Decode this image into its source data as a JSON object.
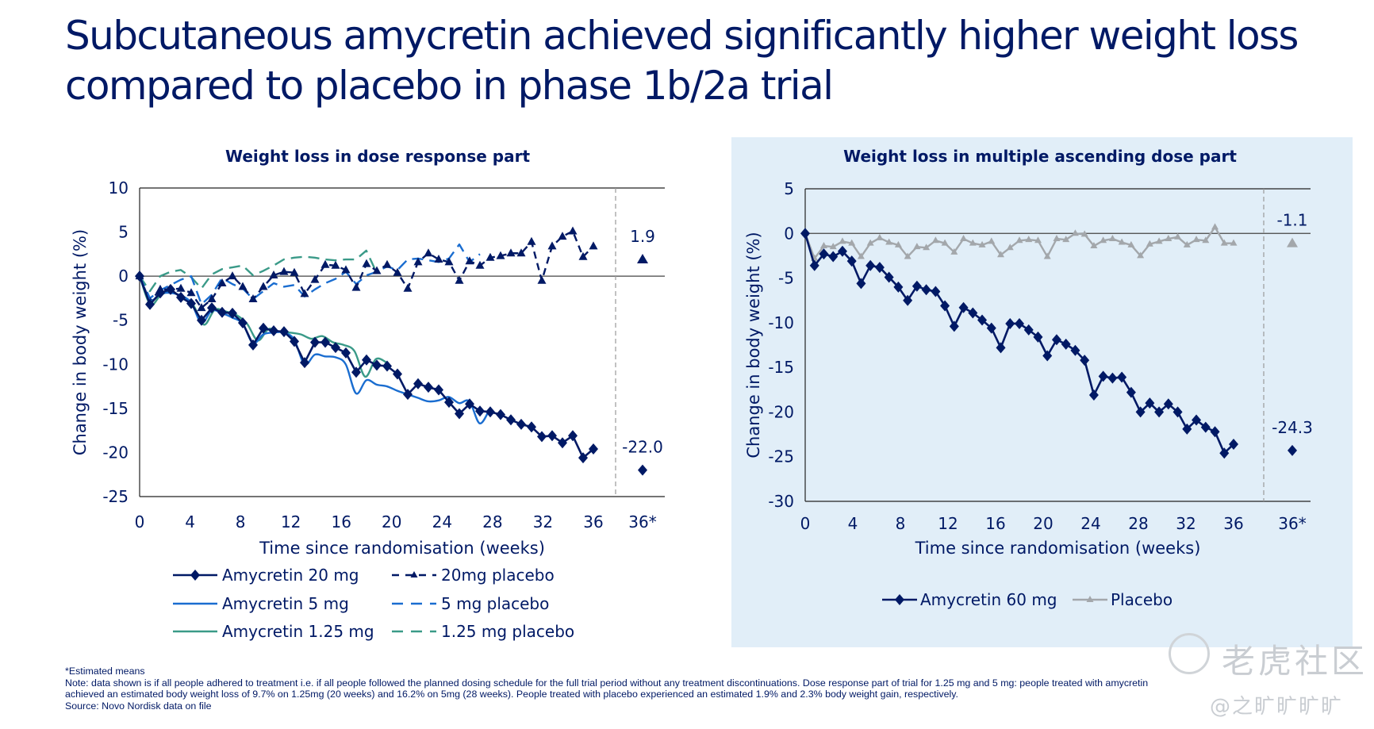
{
  "title": "Subcutaneous amycretin achieved significantly higher weight loss compared to placebo in phase 1b/2a trial",
  "colors": {
    "navy": "#001965",
    "blue": "#1a6dd0",
    "teal": "#3a9a88",
    "grey": "#a3a7ab",
    "panel_bg": "#e1eef8"
  },
  "chart_data": [
    {
      "type": "line",
      "title": "Weight loss in dose response part",
      "xlabel": "Time since randomisation (weeks)",
      "ylabel": "Change in body weight (%)",
      "ylim": [
        -25,
        10
      ],
      "yticks": [
        "10",
        "5",
        "0",
        "-5",
        "-10",
        "-15",
        "-20",
        "-25"
      ],
      "yticks_values": [
        10,
        5,
        0,
        -5,
        -10,
        -15,
        -20,
        -25
      ],
      "xlim": [
        0,
        36
      ],
      "xticks": [
        "0",
        "4",
        "8",
        "12",
        "16",
        "20",
        "24",
        "28",
        "32",
        "36",
        "36*"
      ],
      "xticks_values": [
        0,
        4,
        8,
        12,
        16,
        20,
        24,
        28,
        32,
        36
      ],
      "estimate_tick": "36*",
      "grid": false,
      "legend_position": "bottom",
      "series": [
        {
          "name": "Amycretin 20 mg",
          "color": "navy",
          "style": "solid",
          "marker": "diamond",
          "x_end": 36,
          "values": [
            0,
            -3.2,
            -1.9,
            -1.5,
            -2.4,
            -3.1,
            -5.0,
            -3.6,
            -4.1,
            -4.2,
            -5.3,
            -7.8,
            -5.9,
            -6.2,
            -6.3,
            -7.4,
            -9.8,
            -7.5,
            -7.5,
            -8.1,
            -8.7,
            -10.9,
            -9.5,
            -10.1,
            -10.2,
            -11.1,
            -13.4,
            -12.2,
            -12.6,
            -12.9,
            -14.3,
            -15.6,
            -14.5,
            -15.3,
            -15.4,
            -15.7,
            -16.3,
            -16.8,
            -17.1,
            -18.2,
            -18.1,
            -18.9,
            -18.1,
            -20.6,
            -19.6
          ]
        },
        {
          "name": "Amycretin 5 mg",
          "color": "blue",
          "style": "solid",
          "marker": "none",
          "smooth": true,
          "x_end": 27.8,
          "values": [
            0,
            -2.7,
            -2.0,
            -1.9,
            -2.2,
            -3.0,
            -5.3,
            -3.9,
            -4.2,
            -4.7,
            -5.4,
            -7.6,
            -6.6,
            -6.4,
            -6.4,
            -7.2,
            -10.0,
            -8.9,
            -9.1,
            -9.2,
            -10.0,
            -13.3,
            -11.8,
            -12.3,
            -12.5,
            -13.0,
            -13.4,
            -13.8,
            -14.2,
            -14.1,
            -13.7,
            -14.4,
            -14.2,
            -16.7,
            -15.0
          ]
        },
        {
          "name": "Amycretin 1.25 mg",
          "color": "teal",
          "style": "solid",
          "marker": "none",
          "smooth": true,
          "x_end": 19.6,
          "values": [
            0,
            -3.2,
            -2.1,
            -1.8,
            -2.4,
            -3.3,
            -5.5,
            -3.8,
            -4.0,
            -4.4,
            -5.4,
            -7.3,
            -6.0,
            -6.3,
            -6.4,
            -6.6,
            -7.1,
            -6.8,
            -7.5,
            -7.8,
            -8.5,
            -11.4,
            -9.4,
            -9.8
          ]
        },
        {
          "name": "20mg placebo",
          "color": "navy",
          "style": "dashed-fine",
          "marker": "triangle",
          "x_end": 36,
          "values": [
            0,
            -2.9,
            -1.5,
            -1.5,
            -1.4,
            -1.9,
            -3.6,
            -2.6,
            -0.8,
            0.0,
            -1.2,
            -2.6,
            -1.2,
            0.1,
            0.5,
            0.4,
            -2.0,
            -0.4,
            1.3,
            1.2,
            0.7,
            -1.3,
            1.4,
            0.6,
            1.3,
            0.4,
            -1.4,
            1.6,
            2.6,
            1.9,
            1.6,
            -0.5,
            1.7,
            1.2,
            2.1,
            2.3,
            2.6,
            2.6,
            3.9,
            -0.5,
            3.4,
            4.5,
            5.1,
            2.2,
            3.4
          ]
        },
        {
          "name": "5 mg placebo",
          "color": "blue",
          "style": "dashed",
          "marker": "none",
          "x_end": 27.0,
          "values": [
            0,
            -2.5,
            -1.6,
            -1.0,
            -0.4,
            0.0,
            -3.2,
            -2.1,
            -0.2,
            -0.9,
            -1.4,
            -2.6,
            -1.7,
            -0.8,
            -1.2,
            -1.0,
            -2.3,
            -1.5,
            -0.8,
            -0.3,
            0.5,
            -0.9,
            0.1,
            0.5,
            1.1,
            0.7,
            1.9,
            2.0,
            1.8,
            1.6,
            2.0,
            3.6,
            1.6,
            2.5
          ]
        },
        {
          "name": "1.25 mg placebo",
          "color": "teal",
          "style": "dashed",
          "marker": "none",
          "x_end": 18.8,
          "values": [
            0,
            -1.7,
            0.0,
            0.5,
            0.7,
            -0.1,
            -1.4,
            0.2,
            0.8,
            1.0,
            1.2,
            0.1,
            0.6,
            1.2,
            1.9,
            2.1,
            2.2,
            2.1,
            1.9,
            1.8,
            1.9,
            1.9,
            2.9,
            0.4
          ]
        }
      ],
      "estimates": [
        {
          "series": "20mg placebo",
          "value": 1.9,
          "label": "1.9",
          "marker": "triangle"
        },
        {
          "series": "Amycretin 20 mg",
          "value": -22.0,
          "label": "-22.0",
          "marker": "diamond"
        }
      ]
    },
    {
      "type": "line",
      "title": "Weight loss in multiple ascending dose part",
      "xlabel": "Time since randomisation (weeks)",
      "ylabel": "Change in body weight (%)",
      "ylim": [
        -30,
        5
      ],
      "yticks": [
        "5",
        "0",
        "-5",
        "-10",
        "-15",
        "-20",
        "-25",
        "-30"
      ],
      "yticks_values": [
        5,
        0,
        -5,
        -10,
        -15,
        -20,
        -25,
        -30
      ],
      "xlim": [
        0,
        36
      ],
      "xticks": [
        "0",
        "4",
        "8",
        "12",
        "16",
        "20",
        "24",
        "28",
        "32",
        "36",
        "36*"
      ],
      "xticks_values": [
        0,
        4,
        8,
        12,
        16,
        20,
        24,
        28,
        32,
        36
      ],
      "estimate_tick": "36*",
      "grid": false,
      "legend_position": "bottom",
      "series": [
        {
          "name": "Amycretin 60 mg",
          "color": "navy",
          "style": "solid",
          "marker": "diamond",
          "x_end": 36,
          "values": [
            0,
            -3.6,
            -2.3,
            -2.6,
            -2.0,
            -3.1,
            -5.6,
            -3.6,
            -3.8,
            -4.9,
            -6.0,
            -7.5,
            -5.9,
            -6.3,
            -6.5,
            -8.1,
            -10.4,
            -8.3,
            -8.9,
            -9.7,
            -10.6,
            -12.8,
            -10.1,
            -10.1,
            -10.8,
            -11.6,
            -13.7,
            -11.9,
            -12.4,
            -13.1,
            -14.2,
            -18.1,
            -16.0,
            -16.2,
            -16.1,
            -17.8,
            -20.0,
            -19.0,
            -20.0,
            -19.1,
            -20.0,
            -21.9,
            -20.9,
            -21.7,
            -22.2,
            -24.6,
            -23.6
          ]
        },
        {
          "name": "Placebo",
          "color": "grey",
          "style": "solid",
          "marker": "triangle-small",
          "x_end": 36,
          "values": [
            0,
            -2.8,
            -1.4,
            -1.5,
            -0.9,
            -1.1,
            -2.6,
            -1.1,
            -0.5,
            -1.0,
            -1.3,
            -2.6,
            -1.5,
            -1.6,
            -0.8,
            -1.1,
            -2.1,
            -0.6,
            -1.1,
            -1.3,
            -0.9,
            -2.4,
            -1.6,
            -0.8,
            -0.7,
            -0.8,
            -2.6,
            -0.6,
            -0.7,
            0.0,
            -0.1,
            -1.4,
            -0.8,
            -0.6,
            -1.0,
            -1.3,
            -2.5,
            -1.2,
            -0.9,
            -0.6,
            -0.4,
            -1.3,
            -0.7,
            -0.8,
            0.7,
            -1.1,
            -1.1
          ]
        }
      ],
      "estimates": [
        {
          "series": "Placebo",
          "value": -1.1,
          "label": "-1.1",
          "marker": "triangle"
        },
        {
          "series": "Amycretin 60 mg",
          "value": -24.3,
          "label": "-24.3",
          "marker": "diamond"
        }
      ]
    }
  ],
  "footnotes": {
    "estimated": "*Estimated means",
    "note_line1": "Note: data shown is if all people adhered to treatment i.e. if all people followed the planned dosing schedule for the full trial period without any treatment discontinuations. Dose response part of trial for 1.25 mg and 5 mg: people treated with amycretin",
    "note_line2": "achieved an estimated body weight loss of 9.7% on 1.25mg (20 weeks) and 16.2% on 5mg (28 weeks). People treated with placebo experienced an estimated 1.9% and 2.3% body weight gain, respectively.",
    "source": "Source: Novo Nordisk data on file"
  },
  "watermark": {
    "line1": "老虎社区",
    "line2": "@之旷旷旷旷"
  }
}
